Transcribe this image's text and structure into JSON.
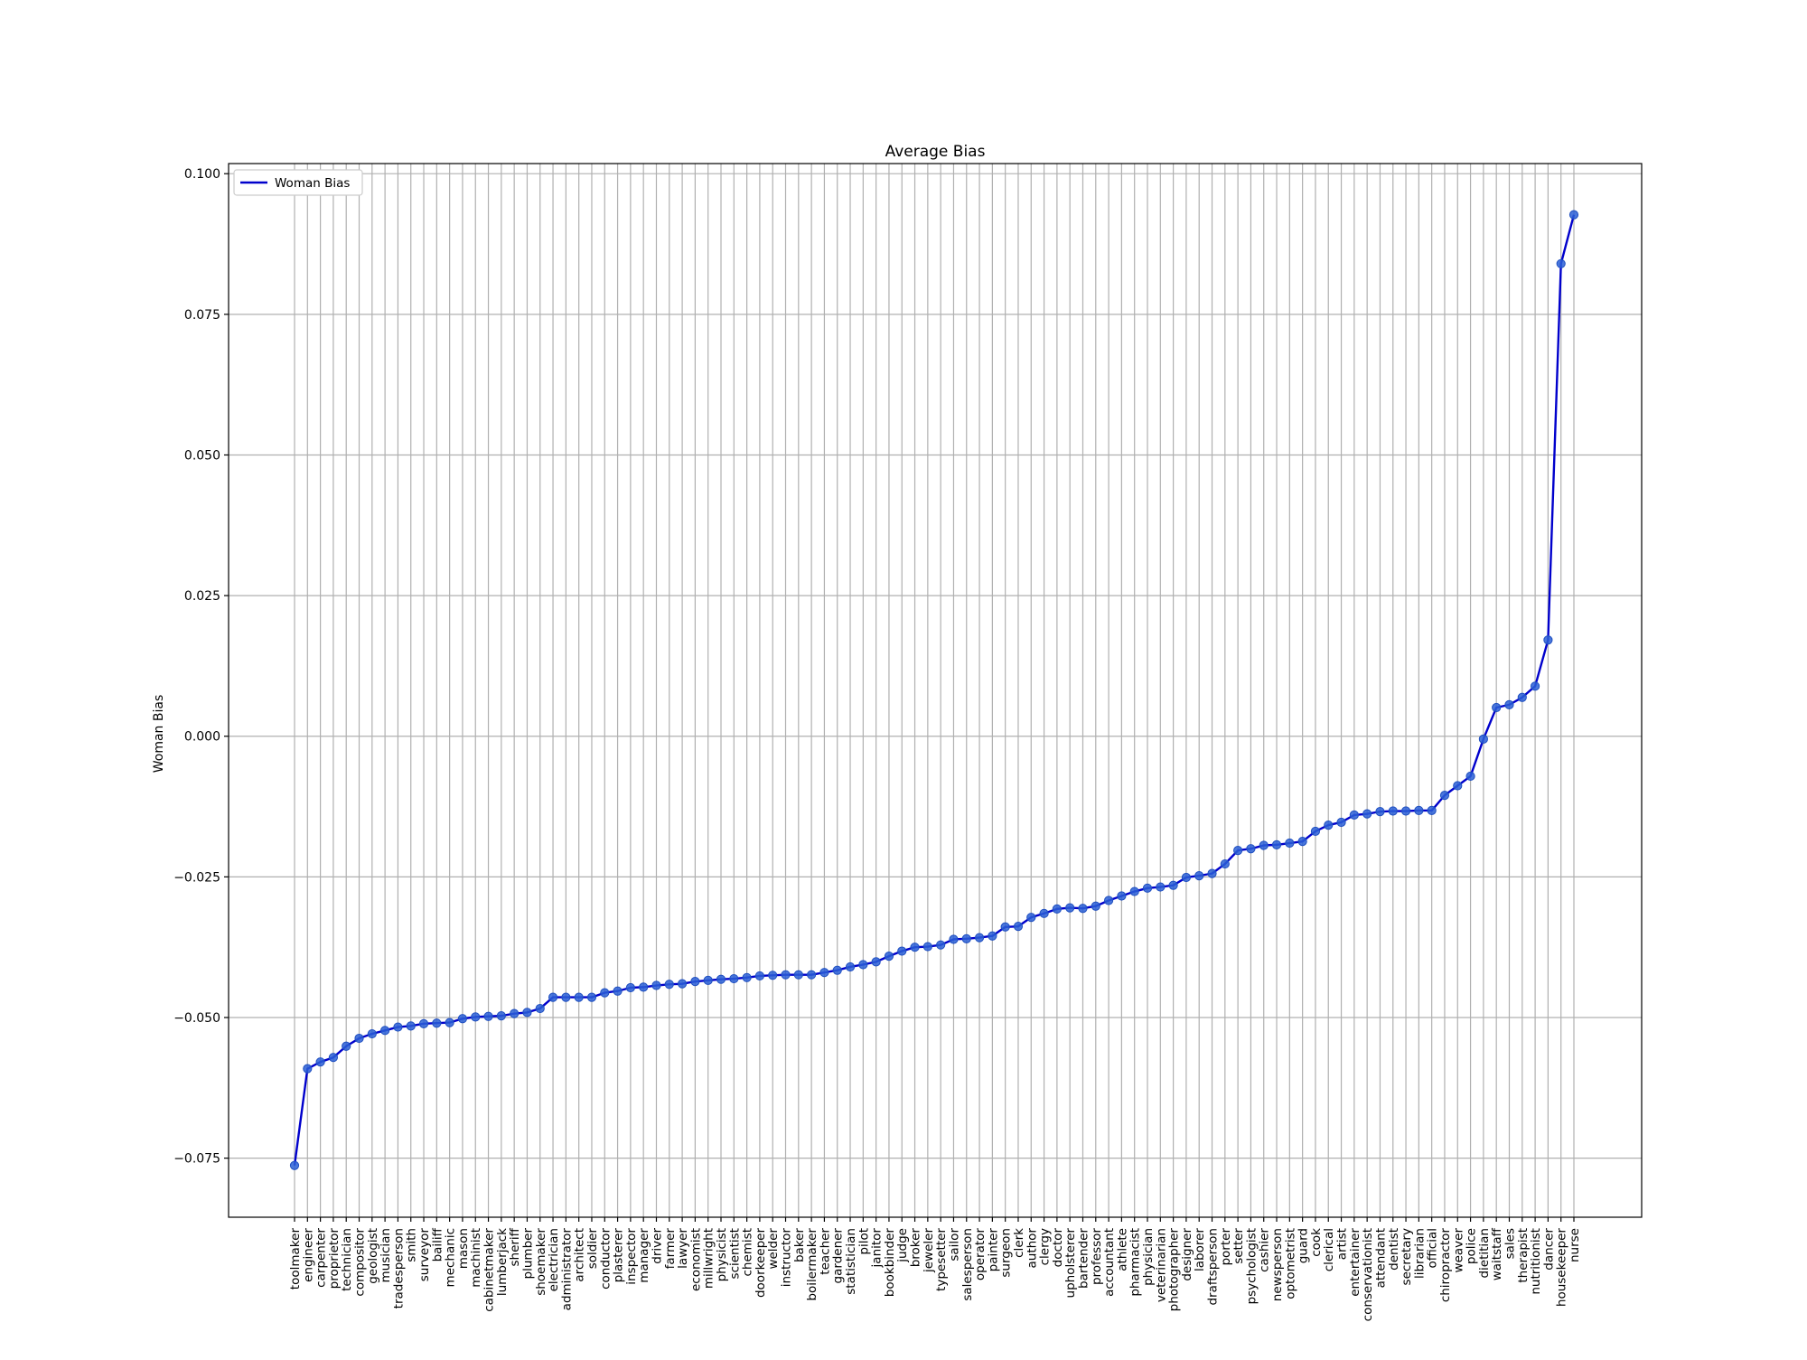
{
  "chart_data": {
    "type": "line",
    "title": "Average Bias",
    "xlabel": "",
    "ylabel": "Woman Bias",
    "ylim": [
      -0.0855,
      0.1018
    ],
    "yticks": [
      -0.075,
      -0.05,
      -0.025,
      0.0,
      0.025,
      0.05,
      0.075,
      0.1
    ],
    "ytick_labels": [
      "−0.075",
      "−0.050",
      "−0.025",
      "0.000",
      "0.025",
      "0.050",
      "0.075",
      "0.100"
    ],
    "grid": true,
    "legend": {
      "location": "top-left",
      "entries": [
        "Woman Bias"
      ]
    },
    "colors": {
      "line": "#0000cc",
      "marker": "#2a5fd6",
      "grid": "#b0b0b0"
    },
    "categories": [
      "toolmaker",
      "engineer",
      "carpenter",
      "proprietor",
      "technician",
      "compositor",
      "geologist",
      "musician",
      "tradesperson",
      "smith",
      "surveyor",
      "bailiff",
      "mechanic",
      "mason",
      "machinist",
      "cabinetmaker",
      "lumberjack",
      "sheriff",
      "plumber",
      "shoemaker",
      "electrician",
      "administrator",
      "architect",
      "soldier",
      "conductor",
      "plasterer",
      "inspector",
      "manager",
      "driver",
      "farmer",
      "lawyer",
      "economist",
      "millwright",
      "physicist",
      "scientist",
      "chemist",
      "doorkeeper",
      "welder",
      "instructor",
      "baker",
      "boilermaker",
      "teacher",
      "gardener",
      "statistician",
      "pilot",
      "janitor",
      "bookbinder",
      "judge",
      "broker",
      "jeweler",
      "typesetter",
      "sailor",
      "salesperson",
      "operator",
      "painter",
      "surgeon",
      "clerk",
      "author",
      "clergy",
      "doctor",
      "upholsterer",
      "bartender",
      "professor",
      "accountant",
      "athlete",
      "pharmacist",
      "physician",
      "veterinarian",
      "photographer",
      "designer",
      "laborer",
      "draftsperson",
      "porter",
      "setter",
      "psychologist",
      "cashier",
      "newsperson",
      "optometrist",
      "guard",
      "cook",
      "clerical",
      "artist",
      "entertainer",
      "conservationist",
      "attendant",
      "dentist",
      "secretary",
      "librarian",
      "official",
      "chiropractor",
      "weaver",
      "police",
      "dietitian",
      "waitstaff",
      "sales",
      "therapist",
      "nutritionist",
      "dancer",
      "housekeeper",
      "nurse"
    ],
    "series": [
      {
        "name": "Woman Bias",
        "values": [
          -0.0763,
          -0.0591,
          -0.0579,
          -0.0571,
          -0.0551,
          -0.0537,
          -0.0529,
          -0.0523,
          -0.0517,
          -0.0515,
          -0.0511,
          -0.051,
          -0.0509,
          -0.0502,
          -0.0499,
          -0.0498,
          -0.0497,
          -0.0493,
          -0.0491,
          -0.0484,
          -0.0464,
          -0.0464,
          -0.0464,
          -0.0464,
          -0.0456,
          -0.0453,
          -0.0447,
          -0.0446,
          -0.0443,
          -0.0441,
          -0.044,
          -0.0436,
          -0.0434,
          -0.0432,
          -0.0431,
          -0.0429,
          -0.0426,
          -0.0425,
          -0.0424,
          -0.0424,
          -0.0424,
          -0.042,
          -0.0416,
          -0.041,
          -0.0406,
          -0.0401,
          -0.0391,
          -0.0382,
          -0.0375,
          -0.0374,
          -0.0371,
          -0.0361,
          -0.036,
          -0.0358,
          -0.0355,
          -0.0339,
          -0.0338,
          -0.0322,
          -0.0315,
          -0.0307,
          -0.0305,
          -0.0306,
          -0.0302,
          -0.0292,
          -0.0284,
          -0.0276,
          -0.027,
          -0.0268,
          -0.0265,
          -0.0251,
          -0.0248,
          -0.0244,
          -0.0227,
          -0.0203,
          -0.02,
          -0.0194,
          -0.0193,
          -0.019,
          -0.0187,
          -0.0169,
          -0.0158,
          -0.0153,
          -0.014,
          -0.0138,
          -0.0134,
          -0.0133,
          -0.0133,
          -0.0132,
          -0.0132,
          -0.0105,
          -0.0088,
          -0.0071,
          -0.0005,
          0.0051,
          0.0056,
          0.0069,
          0.0089,
          0.0171,
          0.084,
          0.0927
        ]
      }
    ]
  }
}
